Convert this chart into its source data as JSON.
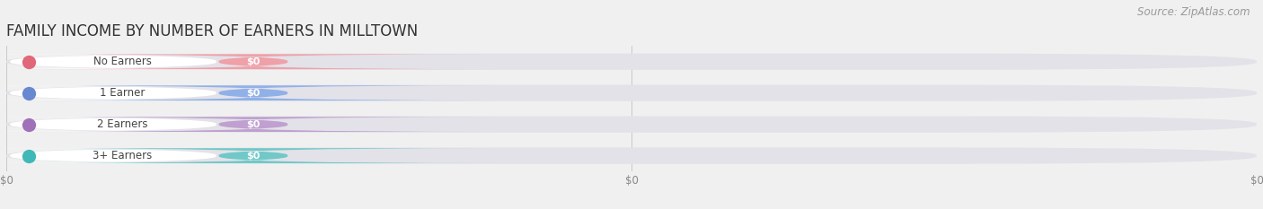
{
  "title": "FAMILY INCOME BY NUMBER OF EARNERS IN MILLTOWN",
  "source": "Source: ZipAtlas.com",
  "categories": [
    "No Earners",
    "1 Earner",
    "2 Earners",
    "3+ Earners"
  ],
  "values": [
    0,
    0,
    0,
    0
  ],
  "bar_colors": [
    "#f0a0a8",
    "#90b0e8",
    "#c0a0d0",
    "#70c8c8"
  ],
  "dot_colors": [
    "#e06878",
    "#6888d0",
    "#a070b8",
    "#40b8b8"
  ],
  "background_color": "#f0f0f0",
  "track_color": "#e2e2e8",
  "title_fontsize": 12,
  "source_fontsize": 8.5,
  "tick_labels": [
    "$0",
    "$0",
    "$0"
  ]
}
